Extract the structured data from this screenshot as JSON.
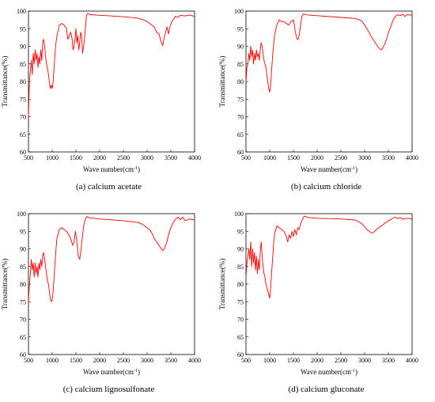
{
  "chart_data": [
    {
      "type": "line",
      "ylabel": "Transmittance(%)",
      "xlabel": "Wave number(cm",
      "xlabel_sup": "-1",
      "xlabel_close": ")",
      "caption": "(a) calcium acetate",
      "xlim": [
        500,
        4000
      ],
      "ylim": [
        60,
        100
      ],
      "xticks": [
        "500",
        "1000",
        "1500",
        "2000",
        "2500",
        "3000",
        "3500",
        "4000"
      ],
      "yticks": [
        "60",
        "65",
        "70",
        "75",
        "80",
        "85",
        "90",
        "95",
        "100"
      ],
      "color": "#ff0000",
      "series": [
        {
          "x": [
            500,
            520,
            540,
            560,
            580,
            600,
            620,
            640,
            660,
            680,
            700,
            720,
            740,
            760,
            780,
            800,
            820,
            840,
            860,
            880,
            900,
            920,
            940,
            960,
            980,
            1000,
            1020,
            1040,
            1060,
            1080,
            1100,
            1150,
            1200,
            1250,
            1300,
            1330,
            1360,
            1390,
            1420,
            1440,
            1460,
            1480,
            1500,
            1520,
            1540,
            1560,
            1580,
            1600,
            1620,
            1640,
            1660,
            1680,
            1700,
            1720,
            1740,
            1760,
            1800,
            2000,
            2500,
            2800,
            2900,
            2950,
            3000,
            3050,
            3100,
            3150,
            3200,
            3250,
            3280,
            3300,
            3330,
            3360,
            3390,
            3420,
            3450,
            3480,
            3520,
            3560,
            3600,
            3650,
            3700,
            3800,
            3900,
            4000
          ],
          "y": [
            70,
            80,
            83,
            86,
            82,
            88,
            85,
            89,
            86,
            88,
            84,
            87,
            85,
            89,
            86,
            91,
            92,
            90,
            87,
            85,
            84,
            82,
            80,
            78,
            79,
            78,
            80,
            84,
            88,
            91,
            93,
            96,
            96.5,
            96,
            95,
            92,
            93,
            94,
            92,
            89,
            90,
            92,
            95,
            91,
            93,
            89,
            91,
            94,
            93,
            88,
            90,
            92,
            95,
            98.5,
            99.2,
            99.3,
            99,
            98.8,
            98.4,
            98,
            97.6,
            97.4,
            97,
            96.5,
            96,
            95.5,
            94,
            93.5,
            92,
            91,
            90.2,
            92.5,
            94,
            95.5,
            93.5,
            95.5,
            97,
            97.8,
            98.5,
            98.2,
            98.8,
            98.6,
            98.9,
            98.5
          ]
        }
      ]
    },
    {
      "type": "line",
      "ylabel": "Transmittance(%)",
      "xlabel": "Wave number(cm",
      "xlabel_sup": "-1",
      "xlabel_close": ")",
      "caption": "(b)  calcium chloride",
      "xlim": [
        500,
        4000
      ],
      "ylim": [
        60,
        100
      ],
      "xticks": [
        "500",
        "1000",
        "1500",
        "2000",
        "2500",
        "3000",
        "3500",
        "4000"
      ],
      "yticks": [
        "60",
        "65",
        "70",
        "75",
        "80",
        "85",
        "90",
        "95",
        "100"
      ],
      "color": "#ff0000",
      "series": [
        {
          "x": [
            500,
            520,
            540,
            560,
            580,
            600,
            620,
            640,
            660,
            680,
            700,
            720,
            740,
            760,
            780,
            800,
            820,
            840,
            860,
            880,
            900,
            920,
            940,
            960,
            980,
            1000,
            1020,
            1040,
            1060,
            1080,
            1100,
            1150,
            1200,
            1250,
            1300,
            1350,
            1400,
            1450,
            1500,
            1520,
            1540,
            1560,
            1580,
            1600,
            1620,
            1640,
            1660,
            1680,
            1700,
            1720,
            1740,
            1760,
            1800,
            2000,
            2500,
            2800,
            2900,
            2950,
            3000,
            3050,
            3100,
            3150,
            3200,
            3250,
            3300,
            3350,
            3380,
            3420,
            3460,
            3500,
            3550,
            3600,
            3650,
            3700,
            3750,
            3800,
            3850,
            3900,
            4000
          ],
          "y": [
            80,
            84,
            85,
            88,
            86,
            90,
            87,
            89,
            85,
            88,
            86,
            89,
            87,
            88,
            86,
            89,
            91,
            90,
            88,
            86,
            85,
            84,
            82,
            80,
            78,
            77,
            79,
            83,
            87,
            90,
            93,
            96,
            97.5,
            97,
            97,
            96.5,
            96,
            97,
            97.5,
            96,
            94,
            93,
            92,
            92,
            93,
            95,
            97,
            98.5,
            99,
            99.2,
            99,
            99.1,
            98.9,
            98.7,
            98.2,
            97.9,
            97.5,
            97,
            96,
            95,
            93.8,
            92.5,
            91.5,
            90.5,
            89.5,
            89,
            89.5,
            90.5,
            92,
            93.8,
            95.5,
            97.5,
            98.5,
            99,
            98.7,
            99.1,
            98.5,
            99,
            98.8
          ]
        }
      ]
    },
    {
      "type": "line",
      "ylabel": "Transmittance(%)",
      "xlabel": "Wave number(cm",
      "xlabel_sup": "-1",
      "xlabel_close": ")",
      "caption": "(c)  calcium lignosulfonate",
      "xlim": [
        500,
        4000
      ],
      "ylim": [
        60,
        100
      ],
      "xticks": [
        "500",
        "1000",
        "1500",
        "2000",
        "2500",
        "3000",
        "3500",
        "4000"
      ],
      "yticks": [
        "60",
        "65",
        "70",
        "75",
        "80",
        "85",
        "90",
        "95",
        "100"
      ],
      "color": "#ff0000",
      "series": [
        {
          "x": [
            500,
            520,
            540,
            560,
            580,
            600,
            620,
            640,
            660,
            680,
            700,
            720,
            740,
            760,
            780,
            800,
            820,
            840,
            860,
            880,
            900,
            920,
            940,
            960,
            980,
            1000,
            1020,
            1040,
            1060,
            1080,
            1100,
            1150,
            1200,
            1250,
            1300,
            1350,
            1400,
            1430,
            1460,
            1490,
            1520,
            1550,
            1580,
            1610,
            1640,
            1670,
            1700,
            1720,
            1740,
            1760,
            1800,
            2000,
            2500,
            2800,
            2900,
            2950,
            3000,
            3050,
            3100,
            3150,
            3200,
            3250,
            3300,
            3330,
            3360,
            3390,
            3420,
            3450,
            3500,
            3550,
            3600,
            3650,
            3700,
            3750,
            3800,
            3900,
            4000
          ],
          "y": [
            75,
            80,
            83,
            87,
            84,
            86,
            82,
            86,
            83,
            85,
            82,
            86,
            84,
            87,
            85,
            88,
            89,
            87,
            85,
            83,
            81,
            80,
            78,
            76,
            75,
            75.5,
            78,
            82,
            86,
            90,
            93,
            95.5,
            96,
            95.5,
            95,
            94,
            92.5,
            91,
            92,
            95,
            92,
            88,
            87,
            90,
            94,
            97,
            98.5,
            99,
            99.2,
            99,
            98.8,
            98.5,
            98,
            97.5,
            97,
            96.5,
            96,
            95.5,
            94.5,
            93,
            92,
            91,
            90,
            89.5,
            90,
            91,
            92,
            94,
            96,
            97.5,
            98.5,
            99,
            98.3,
            99,
            98,
            98.5,
            98.2
          ]
        }
      ]
    },
    {
      "type": "line",
      "ylabel": "Transmittance(%)",
      "xlabel": "Wave number(cm",
      "xlabel_sup": "-1",
      "xlabel_close": ")",
      "caption": "(d)  calcium gluconate",
      "xlim": [
        500,
        4000
      ],
      "ylim": [
        60,
        100
      ],
      "xticks": [
        "500",
        "1000",
        "1500",
        "2000",
        "2500",
        "3000",
        "3500",
        "4000"
      ],
      "yticks": [
        "60",
        "65",
        "70",
        "75",
        "80",
        "85",
        "90",
        "95",
        "100"
      ],
      "color": "#ff0000",
      "series": [
        {
          "x": [
            500,
            520,
            540,
            560,
            580,
            600,
            620,
            640,
            660,
            680,
            700,
            720,
            740,
            760,
            780,
            800,
            820,
            840,
            860,
            880,
            900,
            920,
            940,
            960,
            980,
            1000,
            1020,
            1040,
            1060,
            1080,
            1100,
            1150,
            1200,
            1250,
            1300,
            1350,
            1380,
            1410,
            1440,
            1470,
            1500,
            1530,
            1560,
            1590,
            1620,
            1650,
            1680,
            1710,
            1740,
            1780,
            1800,
            2000,
            2500,
            2800,
            2900,
            2950,
            3000,
            3050,
            3100,
            3150,
            3200,
            3250,
            3300,
            3350,
            3400,
            3450,
            3500,
            3550,
            3600,
            3650,
            3700,
            3750,
            3800,
            3900,
            4000
          ],
          "y": [
            82,
            86,
            88,
            90,
            87,
            92,
            85,
            90,
            86,
            89,
            84,
            88,
            83,
            87,
            84,
            89,
            92,
            88,
            85,
            83,
            82,
            80,
            79,
            78,
            77,
            76,
            79,
            83,
            87,
            91,
            94,
            96.5,
            96,
            95.5,
            95,
            93.5,
            92,
            94,
            93,
            95,
            93.5,
            95.5,
            94,
            96,
            95.5,
            97,
            98,
            99,
            99.3,
            99.1,
            98.9,
            98.7,
            98.5,
            98.2,
            97.5,
            97,
            96.3,
            95.5,
            95,
            94.5,
            94.8,
            95.5,
            96,
            96.5,
            97,
            97.5,
            98,
            98.3,
            98.8,
            99,
            98.6,
            98.9,
            98.4,
            98.7,
            98.5
          ]
        }
      ]
    }
  ]
}
